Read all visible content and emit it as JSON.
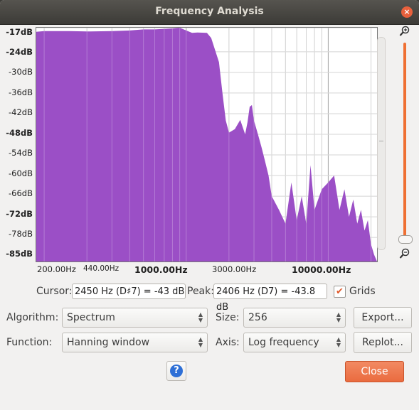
{
  "window": {
    "title": "Frequency Analysis",
    "close_glyph": "×"
  },
  "plot": {
    "fill_color": "#9b4fc6",
    "y_labels": [
      "-17dB",
      "-24dB",
      "-30dB",
      "-36dB",
      "-42dB",
      "-48dB",
      "-54dB",
      "-60dB",
      "-66dB",
      "-72dB",
      "-78dB",
      "-85dB"
    ],
    "x_labels": [
      "200.00Hz",
      "440.00Hz",
      "1000.00Hz",
      "3000.00Hz",
      "10000.00Hz"
    ]
  },
  "chart_data": {
    "type": "area",
    "xlabel": "",
    "ylabel": "",
    "x_scale": "log",
    "ylim": [
      -85,
      -17
    ],
    "xlim": [
      88,
      22050
    ],
    "x": [
      88,
      100,
      150,
      200,
      300,
      400,
      500,
      600,
      800,
      900,
      1000,
      1100,
      1200,
      1400,
      1500,
      1700,
      1800,
      1900,
      2000,
      2200,
      2400,
      2600,
      2700,
      2800,
      2900,
      3000,
      3200,
      3400,
      3600,
      3800,
      4000,
      4500,
      5000,
      5500,
      6000,
      6500,
      7000,
      7500,
      8000,
      9000,
      10000,
      11000,
      12000,
      13000,
      14000,
      15000,
      16000,
      17000,
      18000,
      19000,
      20000,
      21000,
      22050
    ],
    "y": [
      -18.2,
      -18.0,
      -18.0,
      -18.1,
      -18.0,
      -17.8,
      -17.5,
      -17.5,
      -17.2,
      -17.0,
      -17.8,
      -18.5,
      -18.4,
      -18.5,
      -20.0,
      -27.0,
      -36.0,
      -44.0,
      -47.5,
      -46.5,
      -43.8,
      -48.0,
      -44.5,
      -40.0,
      -39.5,
      -44.0,
      -48.0,
      -52.0,
      -56.0,
      -60.0,
      -66.0,
      -70.0,
      -74.0,
      -62.0,
      -73.0,
      -66.0,
      -74.0,
      -57.0,
      -70.0,
      -64.0,
      -62.0,
      -60.0,
      -70.0,
      -64.0,
      -72.0,
      -67.0,
      -74.0,
      -70.0,
      -76.0,
      -73.0,
      -80.0,
      -83.0,
      -85.0
    ]
  },
  "cursor": {
    "label": "Cursor:",
    "value": "2450 Hz (D♯7) = -43 dB"
  },
  "peak": {
    "label": "Peak:",
    "value": "2406 Hz (D7) = -43.8 dB"
  },
  "grids": {
    "label": "Grids",
    "checked": "✔"
  },
  "algorithm": {
    "label": "Algorithm:",
    "value": "Spectrum"
  },
  "size": {
    "label": "Size:",
    "value": "256"
  },
  "function": {
    "label": "Function:",
    "value": "Hanning window"
  },
  "axis": {
    "label": "Axis:",
    "value": "Log frequency"
  },
  "buttons": {
    "export": "Export...",
    "replot": "Replot...",
    "close": "Close",
    "help": "?"
  }
}
